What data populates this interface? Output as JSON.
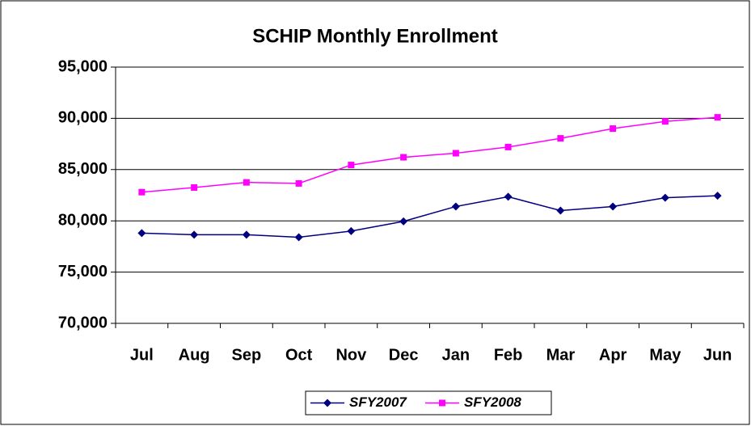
{
  "chart_data": {
    "type": "line",
    "title": "SCHIP Monthly Enrollment",
    "categories": [
      "Jul",
      "Aug",
      "Sep",
      "Oct",
      "Nov",
      "Dec",
      "Jan",
      "Feb",
      "Mar",
      "Apr",
      "May",
      "Jun"
    ],
    "series": [
      {
        "name": "SFY2007",
        "color": "#000080",
        "marker": "diamond",
        "values": [
          78800,
          78650,
          78650,
          78400,
          79000,
          79950,
          81400,
          82350,
          81000,
          81400,
          82250,
          82450
        ]
      },
      {
        "name": "SFY2008",
        "color": "#ff00ff",
        "marker": "square",
        "values": [
          82800,
          83250,
          83750,
          83650,
          85450,
          86200,
          86600,
          87200,
          88050,
          89000,
          89700,
          90100
        ]
      }
    ],
    "ylim": [
      70000,
      95000
    ],
    "yticks": [
      {
        "value": 70000,
        "label": "70,000"
      },
      {
        "value": 75000,
        "label": "75,000"
      },
      {
        "value": 80000,
        "label": "80,000"
      },
      {
        "value": 85000,
        "label": "85,000"
      },
      {
        "value": 90000,
        "label": "90,000"
      },
      {
        "value": 95000,
        "label": "95,000"
      }
    ],
    "grid": true,
    "legend": "bottom"
  }
}
